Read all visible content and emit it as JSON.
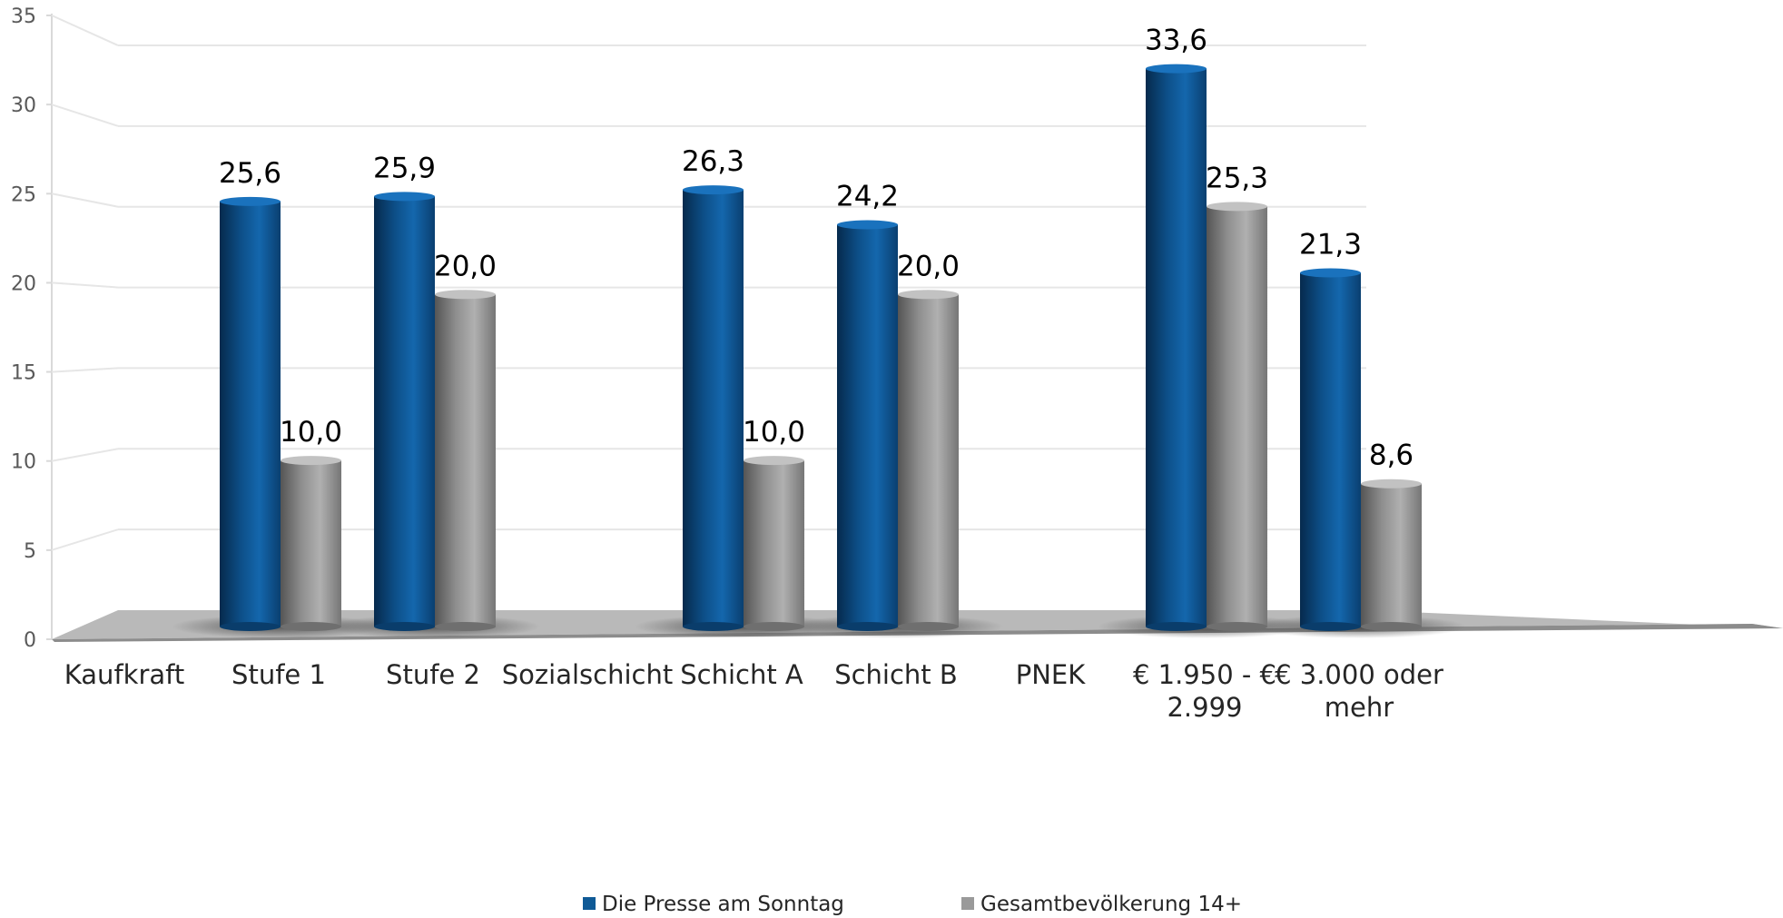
{
  "chart_data": {
    "type": "bar",
    "categories": [
      [
        "Kaufkraft"
      ],
      [
        "Stufe 1"
      ],
      [
        "Stufe 2"
      ],
      [
        "Sozialschicht"
      ],
      [
        "Schicht A"
      ],
      [
        "Schicht B"
      ],
      [
        "PNEK"
      ],
      [
        "€ 1.950 - €",
        "2.999"
      ],
      [
        "€ 3.000 oder",
        "mehr"
      ]
    ],
    "series": [
      {
        "name": "Die Presse am Sonntag",
        "color": "#0f5a96",
        "values": [
          null,
          25.6,
          25.9,
          null,
          26.3,
          24.2,
          null,
          33.6,
          21.3
        ],
        "labels": [
          "",
          "25,6",
          "25,9",
          "",
          "26,3",
          "24,2",
          "",
          "33,6",
          "21,3"
        ]
      },
      {
        "name": "Gesamtbevölkerung 14+",
        "color": "#9a9a9a",
        "values": [
          null,
          10.0,
          20.0,
          null,
          10.0,
          20.0,
          null,
          25.3,
          8.6
        ],
        "labels": [
          "",
          "10,0",
          "20,0",
          "",
          "10,0",
          "20,0",
          "",
          "25,3",
          "8,6"
        ]
      }
    ],
    "yticks": [
      "0",
      "5",
      "10",
      "15",
      "20",
      "25",
      "30",
      "35"
    ],
    "ylim": [
      0,
      35
    ],
    "grid": true,
    "legend_position": "bottom"
  }
}
